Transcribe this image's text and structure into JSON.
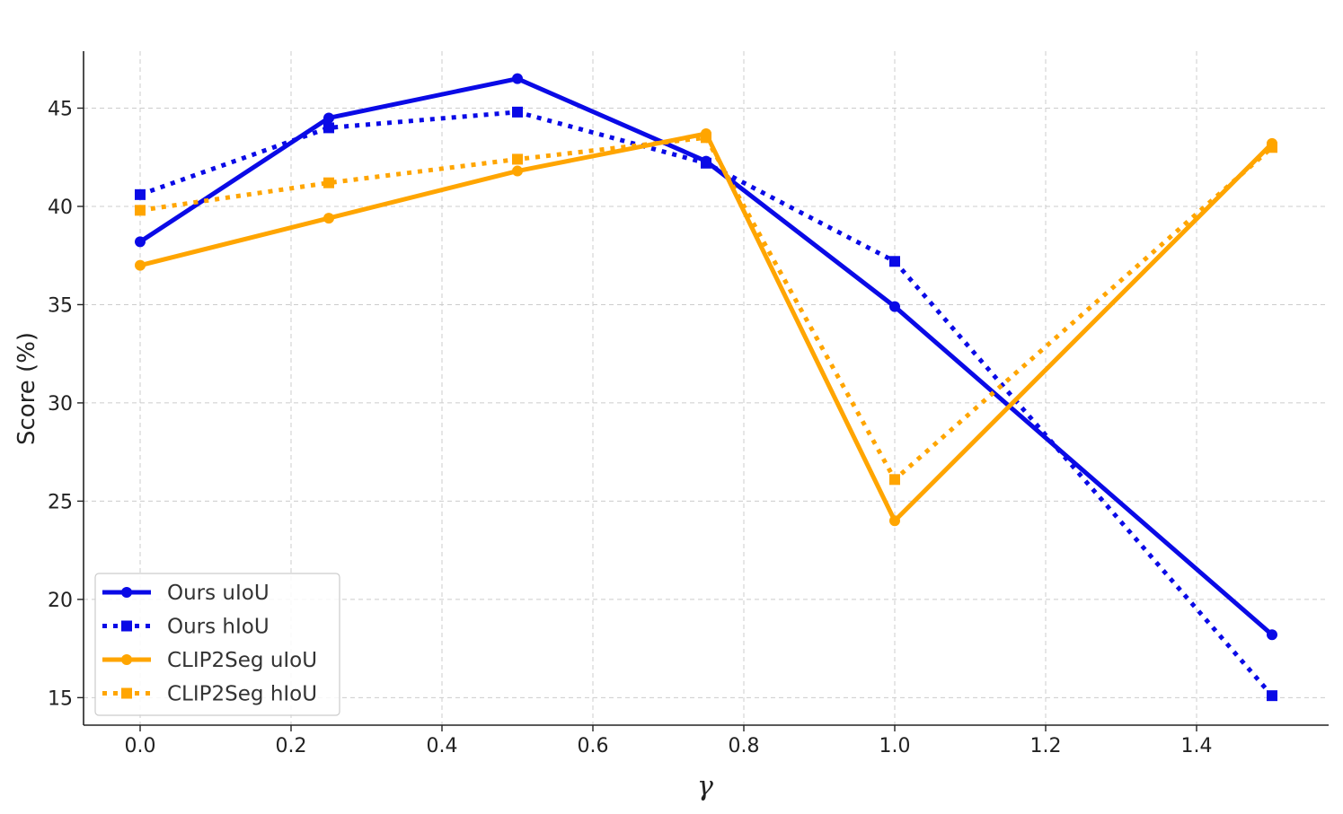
{
  "chart_data": {
    "type": "line",
    "xlabel": "γ",
    "ylabel": "Score (%)",
    "xlim": [
      -0.075,
      1.575
    ],
    "ylim": [
      13.6,
      47.9
    ],
    "xticks": [
      "0.0",
      "0.2",
      "0.4",
      "0.6",
      "0.8",
      "1.0",
      "1.2",
      "1.4"
    ],
    "xtick_values": [
      0.0,
      0.2,
      0.4,
      0.6,
      0.8,
      1.0,
      1.2,
      1.4
    ],
    "yticks": [
      "15",
      "20",
      "25",
      "30",
      "35",
      "40",
      "45"
    ],
    "ytick_values": [
      15,
      20,
      25,
      30,
      35,
      40,
      45
    ],
    "grid": true,
    "legend_position": "bottom-left",
    "x": [
      0.0,
      0.25,
      0.5,
      0.75,
      1.0,
      1.5
    ],
    "series": [
      {
        "name": "Ours uIoU",
        "values": [
          38.2,
          44.5,
          46.5,
          42.3,
          34.9,
          18.2
        ],
        "color": "#0a0ae6",
        "style": "solid",
        "marker": "circle"
      },
      {
        "name": "Ours hIoU",
        "values": [
          40.6,
          44.0,
          44.8,
          42.2,
          37.2,
          15.1
        ],
        "color": "#0a0ae6",
        "style": "dotted",
        "marker": "square"
      },
      {
        "name": "CLIP2Seg uIoU",
        "values": [
          37.0,
          39.4,
          41.8,
          43.7,
          24.0,
          43.2
        ],
        "color": "#ffa500",
        "style": "solid",
        "marker": "circle"
      },
      {
        "name": "CLIP2Seg hIoU",
        "values": [
          39.8,
          41.2,
          42.4,
          43.5,
          26.1,
          43.0
        ],
        "color": "#ffa500",
        "style": "dotted",
        "marker": "square"
      }
    ]
  }
}
